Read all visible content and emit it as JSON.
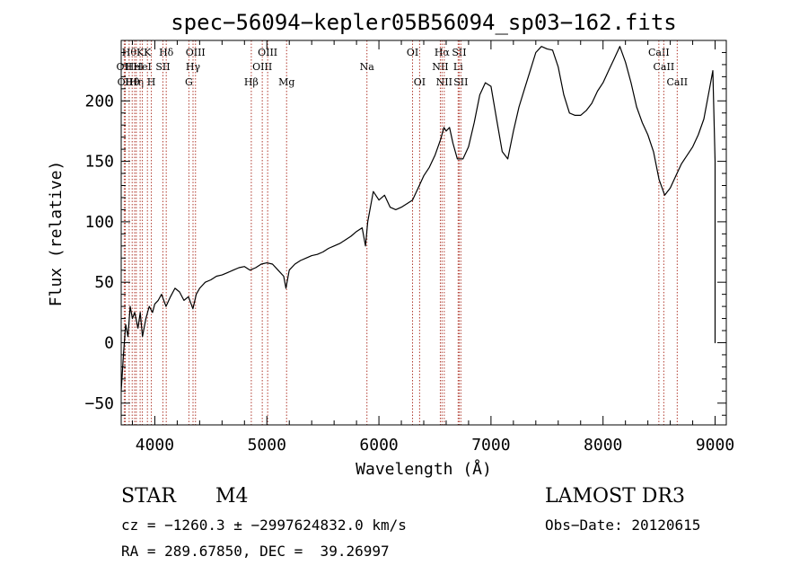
{
  "chart_data": {
    "type": "line",
    "title": "spec−56094−kepler05B56094_sp03−162.fits",
    "xlabel": "Wavelength (Å)",
    "ylabel": "Flux (relative)",
    "xlim": [
      3700,
      9100
    ],
    "ylim": [
      -68,
      250
    ],
    "xticks": [
      4000,
      5000,
      6000,
      7000,
      8000,
      9000
    ],
    "yticks": [
      -50,
      0,
      50,
      100,
      150,
      200
    ],
    "grid": false,
    "series": [
      {
        "name": "flux",
        "points": [
          [
            3700,
            -40
          ],
          [
            3720,
            -10
          ],
          [
            3740,
            15
          ],
          [
            3760,
            5
          ],
          [
            3780,
            30
          ],
          [
            3800,
            20
          ],
          [
            3820,
            25
          ],
          [
            3850,
            12
          ],
          [
            3870,
            25
          ],
          [
            3890,
            5
          ],
          [
            3920,
            20
          ],
          [
            3950,
            30
          ],
          [
            3980,
            25
          ],
          [
            4000,
            32
          ],
          [
            4030,
            35
          ],
          [
            4060,
            40
          ],
          [
            4100,
            30
          ],
          [
            4140,
            38
          ],
          [
            4180,
            45
          ],
          [
            4220,
            42
          ],
          [
            4260,
            35
          ],
          [
            4300,
            38
          ],
          [
            4340,
            28
          ],
          [
            4370,
            40
          ],
          [
            4400,
            45
          ],
          [
            4450,
            50
          ],
          [
            4500,
            52
          ],
          [
            4550,
            55
          ],
          [
            4600,
            56
          ],
          [
            4650,
            58
          ],
          [
            4700,
            60
          ],
          [
            4750,
            62
          ],
          [
            4800,
            63
          ],
          [
            4850,
            60
          ],
          [
            4900,
            62
          ],
          [
            4950,
            65
          ],
          [
            5000,
            66
          ],
          [
            5050,
            65
          ],
          [
            5100,
            60
          ],
          [
            5150,
            55
          ],
          [
            5170,
            45
          ],
          [
            5200,
            60
          ],
          [
            5250,
            65
          ],
          [
            5300,
            68
          ],
          [
            5350,
            70
          ],
          [
            5400,
            72
          ],
          [
            5450,
            73
          ],
          [
            5500,
            75
          ],
          [
            5550,
            78
          ],
          [
            5600,
            80
          ],
          [
            5650,
            82
          ],
          [
            5700,
            85
          ],
          [
            5750,
            88
          ],
          [
            5800,
            92
          ],
          [
            5850,
            95
          ],
          [
            5880,
            80
          ],
          [
            5900,
            100
          ],
          [
            5950,
            125
          ],
          [
            6000,
            118
          ],
          [
            6050,
            122
          ],
          [
            6100,
            112
          ],
          [
            6150,
            110
          ],
          [
            6200,
            112
          ],
          [
            6250,
            115
          ],
          [
            6300,
            118
          ],
          [
            6350,
            128
          ],
          [
            6400,
            138
          ],
          [
            6450,
            145
          ],
          [
            6500,
            155
          ],
          [
            6550,
            168
          ],
          [
            6580,
            178
          ],
          [
            6600,
            175
          ],
          [
            6630,
            178
          ],
          [
            6660,
            165
          ],
          [
            6700,
            152
          ],
          [
            6750,
            152
          ],
          [
            6800,
            162
          ],
          [
            6850,
            182
          ],
          [
            6900,
            205
          ],
          [
            6950,
            215
          ],
          [
            7000,
            212
          ],
          [
            7050,
            185
          ],
          [
            7100,
            158
          ],
          [
            7150,
            152
          ],
          [
            7200,
            175
          ],
          [
            7250,
            195
          ],
          [
            7300,
            210
          ],
          [
            7350,
            225
          ],
          [
            7400,
            240
          ],
          [
            7450,
            245
          ],
          [
            7500,
            243
          ],
          [
            7550,
            242
          ],
          [
            7600,
            228
          ],
          [
            7650,
            205
          ],
          [
            7700,
            190
          ],
          [
            7750,
            188
          ],
          [
            7800,
            188
          ],
          [
            7850,
            192
          ],
          [
            7900,
            198
          ],
          [
            7950,
            208
          ],
          [
            8000,
            215
          ],
          [
            8050,
            225
          ],
          [
            8100,
            235
          ],
          [
            8150,
            245
          ],
          [
            8200,
            232
          ],
          [
            8250,
            215
          ],
          [
            8300,
            195
          ],
          [
            8350,
            182
          ],
          [
            8400,
            172
          ],
          [
            8450,
            158
          ],
          [
            8500,
            135
          ],
          [
            8550,
            122
          ],
          [
            8600,
            128
          ],
          [
            8650,
            138
          ],
          [
            8700,
            148
          ],
          [
            8750,
            155
          ],
          [
            8800,
            162
          ],
          [
            8850,
            172
          ],
          [
            8900,
            185
          ],
          [
            8950,
            210
          ],
          [
            8980,
            225
          ],
          [
            9000,
            150
          ],
          [
            9000,
            0
          ],
          [
            9000,
            60
          ]
        ]
      }
    ],
    "line_markers": [
      {
        "wavelength": 3727,
        "label": "OII",
        "row": 2
      },
      {
        "wavelength": 3736,
        "label": "OII",
        "row": 3
      },
      {
        "wavelength": 3771,
        "label": "Hθ",
        "row": 1
      },
      {
        "wavelength": 3798,
        "label": "Hθ",
        "row": 3
      },
      {
        "wavelength": 3820,
        "label": "HeI",
        "row": 2
      },
      {
        "wavelength": 3835,
        "label": "Hη",
        "row": 3
      },
      {
        "wavelength": 3869,
        "label": "K",
        "row": 1
      },
      {
        "wavelength": 3889,
        "label": "HeI",
        "row": 2
      },
      {
        "wavelength": 3934,
        "label": "K",
        "row": 1
      },
      {
        "wavelength": 3969,
        "label": "H",
        "row": 3
      },
      {
        "wavelength": 4072,
        "label": "SII",
        "row": 2
      },
      {
        "wavelength": 4102,
        "label": "Hδ",
        "row": 1
      },
      {
        "wavelength": 4304,
        "label": "G",
        "row": 3
      },
      {
        "wavelength": 4341,
        "label": "Hγ",
        "row": 2
      },
      {
        "wavelength": 4363,
        "label": "OIII",
        "row": 1
      },
      {
        "wavelength": 4861,
        "label": "Hβ",
        "row": 3
      },
      {
        "wavelength": 4959,
        "label": "OIII",
        "row": 2
      },
      {
        "wavelength": 5007,
        "label": "OIII",
        "row": 1
      },
      {
        "wavelength": 5176,
        "label": "Mg",
        "row": 3
      },
      {
        "wavelength": 5893,
        "label": "Na",
        "row": 2
      },
      {
        "wavelength": 6300,
        "label": "OI",
        "row": 1
      },
      {
        "wavelength": 6363,
        "label": "OI",
        "row": 3
      },
      {
        "wavelength": 6548,
        "label": "NII",
        "row": 2
      },
      {
        "wavelength": 6563,
        "label": "Hα",
        "row": 1
      },
      {
        "wavelength": 6583,
        "label": "NII",
        "row": 3
      },
      {
        "wavelength": 6707,
        "label": "Li",
        "row": 2
      },
      {
        "wavelength": 6716,
        "label": "SII",
        "row": 1
      },
      {
        "wavelength": 6731,
        "label": "SII",
        "row": 3
      },
      {
        "wavelength": 8498,
        "label": "CaII",
        "row": 1
      },
      {
        "wavelength": 8542,
        "label": "CaII",
        "row": 2
      },
      {
        "wavelength": 8662,
        "label": "CaII",
        "row": 3
      }
    ]
  },
  "info": {
    "class_label": "STAR",
    "subclass": "M4",
    "survey": "LAMOST DR3",
    "redshift_line": "cz = −1260.3 ± −2997624832.0 km/s",
    "obs_date_line": "Obs−Date: 20120615",
    "coords_line": "RA = 289.67850, DEC =  39.26997"
  },
  "colors": {
    "marker": "#b03a2e",
    "line": "#000000"
  }
}
